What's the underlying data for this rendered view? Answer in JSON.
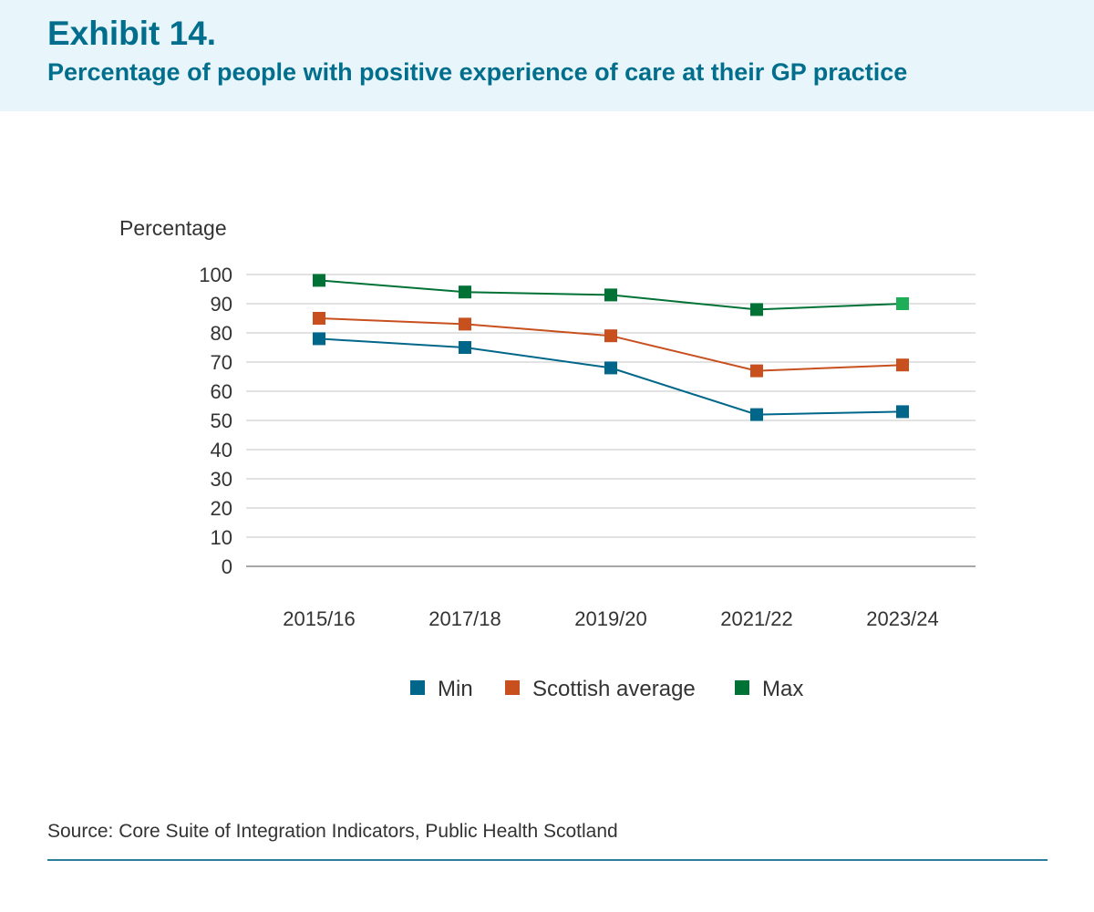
{
  "header": {
    "exhibit": "Exhibit 14.",
    "title": "Percentage of people with positive experience of care at their GP practice"
  },
  "chart_data": {
    "type": "line",
    "title": "Percentage of people with positive experience of care at their GP practice",
    "ylabel": "Percentage",
    "xlabel": "",
    "categories": [
      "2015/16",
      "2017/18",
      "2019/20",
      "2021/22",
      "2023/24"
    ],
    "ylim": [
      0,
      100
    ],
    "yticks": [
      0,
      10,
      20,
      30,
      40,
      50,
      60,
      70,
      80,
      90,
      100
    ],
    "grid": true,
    "legend_position": "bottom-center",
    "series": [
      {
        "name": "Min",
        "color": "#00678a",
        "values": [
          78,
          75,
          68,
          52,
          53
        ]
      },
      {
        "name": "Scottish average",
        "color": "#c8501e",
        "values": [
          85,
          83,
          79,
          67,
          69
        ]
      },
      {
        "name": "Max",
        "color": "#007236",
        "last_point_color": "#1fae58",
        "values": [
          98,
          94,
          93,
          88,
          90
        ]
      }
    ]
  },
  "source": "Source: Core Suite of Integration Indicators, Public Health Scotland"
}
